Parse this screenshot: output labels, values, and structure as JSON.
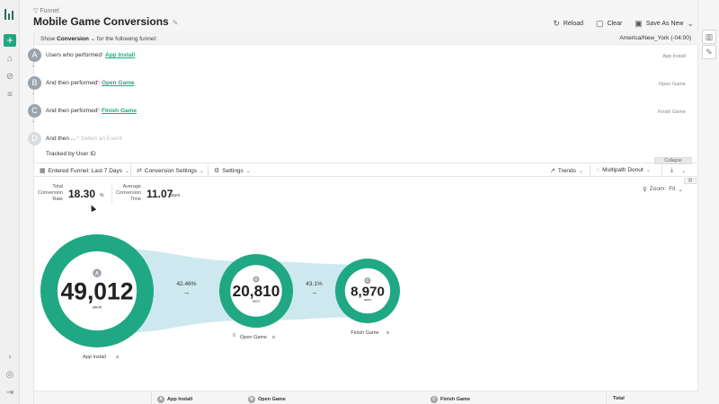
{
  "header": {
    "breadcrumb": "Funnel",
    "title": "Mobile Game Conversions",
    "actions": [
      {
        "label": "Reload",
        "icon": "reload-icon"
      },
      {
        "label": "Clear",
        "icon": "clear-icon"
      },
      {
        "label": "Save As New",
        "icon": "save-icon"
      }
    ]
  },
  "showbar": {
    "prefix": "Show",
    "measure": "Conversion",
    "suffix": "for the following funnel:",
    "timezone": "America/New_York (-04:00)"
  },
  "steps": [
    {
      "letter": "A",
      "text": "Users who performed",
      "event": "App Install",
      "right": "App Install"
    },
    {
      "letter": "B",
      "text": "And then performed",
      "event": "Open Game",
      "right": "Open Game"
    },
    {
      "letter": "C",
      "text": "And then performed",
      "event": "Finish Game",
      "right": "Finish Game"
    },
    {
      "letter": "D",
      "text": "And then ...",
      "event": "Select an Event",
      "right": ""
    }
  ],
  "tracked_by": "Tracked by User ID",
  "collapse_label": "Collapse",
  "toolbar": {
    "entered": "Entered Funnel: Last 7 Days",
    "conversion_settings": "Conversion Settings",
    "settings": "Settings",
    "trends": "Trends",
    "chart_type": "Multipath Donut"
  },
  "stats": {
    "total_label_1": "Total",
    "total_label_2": "Conversion",
    "total_label_3": "Rate",
    "total_value": "18.30",
    "total_unit": "%",
    "avg_label_1": "Average",
    "avg_label_2": "Conversion",
    "avg_label_3": "Time",
    "avg_value": "11.07",
    "avg_unit": "hours"
  },
  "zoom": {
    "label": "Zoom:",
    "value": "Fit"
  },
  "chart_data": {
    "type": "multipath-donut",
    "title": "",
    "nodes": [
      {
        "letter": "A",
        "label": "App Install",
        "value": "49,012",
        "unit": "users",
        "count": 49012
      },
      {
        "letter": "B",
        "label": "Open Game",
        "value": "20,810",
        "unit": "users",
        "count": 20810,
        "prefix": "0"
      },
      {
        "letter": "C",
        "label": "Finish Game",
        "value": "8,970",
        "unit": "users",
        "count": 8970
      }
    ],
    "links": [
      {
        "from": "A",
        "to": "B",
        "rate": "42.46%"
      },
      {
        "from": "B",
        "to": "C",
        "rate": "43.1%"
      }
    ],
    "colors": {
      "ring": "#1fa883",
      "flow": "#cde9ef",
      "badge": "#9aa3ab"
    }
  },
  "footer": {
    "cols": [
      {
        "letter": "A",
        "label": "App Install"
      },
      {
        "letter": "B",
        "label": "Open Game"
      },
      {
        "letter": "C",
        "label": "Finish Game"
      }
    ],
    "total": "Total"
  }
}
